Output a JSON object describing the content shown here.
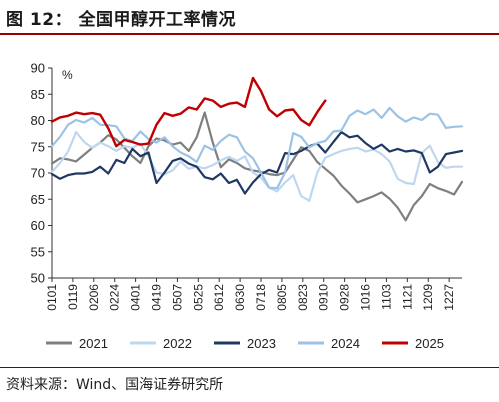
{
  "title": "图 12：  全国甲醇开工率情况",
  "source": "资料来源：Wind、国海证券研究所",
  "chart_data": {
    "type": "line",
    "unit_label": "%",
    "ylim": [
      50,
      90
    ],
    "yticks": [
      50,
      55,
      60,
      65,
      70,
      75,
      80,
      85,
      90
    ],
    "xlim": [
      1,
      52
    ],
    "xtick_labels": [
      "0101",
      "0119",
      "0206",
      "0224",
      "0401",
      "0419",
      "0507",
      "0525",
      "0612",
      "0630",
      "0718",
      "0805",
      "0823",
      "0910",
      "0928",
      "1016",
      "1103",
      "1121",
      "1209",
      "1227"
    ],
    "xtick_positions": [
      1,
      3.6,
      6.2,
      8.8,
      11.4,
      14,
      16.6,
      19.2,
      21.8,
      24.4,
      27,
      29.6,
      32.2,
      34.8,
      37.4,
      40,
      42.6,
      45.2,
      47.8,
      50.4
    ],
    "grid": false,
    "legend_position": "bottom",
    "series": [
      {
        "name": "2021",
        "color": "#7f7f7f",
        "x": [
          1,
          2,
          3,
          4,
          5,
          6,
          7,
          8,
          9,
          10,
          11,
          12,
          13,
          14,
          15,
          16,
          17,
          18,
          19,
          20,
          21,
          22,
          23,
          24,
          25,
          26,
          27,
          28,
          29,
          30,
          31,
          32,
          33,
          34,
          35,
          36,
          37,
          38,
          39,
          40,
          41,
          42,
          43,
          44,
          45,
          46,
          47,
          48,
          49,
          50,
          51,
          52
        ],
        "values": [
          71.8,
          72.8,
          72.6,
          72.2,
          73.5,
          74.8,
          75.8,
          77.2,
          76.4,
          74.8,
          73.2,
          71.9,
          75.1,
          76.6,
          76.2,
          75.4,
          75.8,
          74.2,
          76.8,
          81.5,
          75.8,
          71.1,
          72.6,
          71.9,
          70.9,
          70.5,
          70.2,
          69.8,
          69.6,
          70.1,
          72.5,
          74.9,
          74.2,
          72.1,
          70.8,
          69.5,
          67.6,
          66.1,
          64.4,
          65.0,
          65.6,
          66.3,
          65.1,
          63.4,
          61.0,
          63.9,
          65.6,
          67.9,
          67.1,
          66.6,
          65.9,
          68.3
        ]
      },
      {
        "name": "2022",
        "color": "#bfd7ee",
        "x": [
          1,
          2,
          3,
          4,
          5,
          6,
          7,
          8,
          9,
          10,
          11,
          12,
          13,
          14,
          15,
          16,
          17,
          18,
          19,
          20,
          21,
          22,
          23,
          24,
          25,
          26,
          27,
          28,
          29,
          30,
          31,
          32,
          33,
          34,
          35,
          36,
          37,
          38,
          39,
          40,
          41,
          42,
          43,
          44,
          45,
          46,
          47,
          48,
          49,
          50,
          51,
          52
        ],
        "values": [
          70.2,
          71.9,
          74.1,
          77.8,
          75.9,
          74.8,
          75.8,
          75.1,
          74.2,
          75.1,
          74.8,
          75.6,
          73.2,
          70.1,
          69.8,
          70.5,
          72.2,
          70.8,
          71.2,
          70.9,
          71.5,
          72.4,
          73.1,
          72.3,
          73.2,
          70.1,
          69.1,
          67.2,
          66.5,
          68.2,
          69.6,
          65.6,
          64.7,
          70.1,
          72.9,
          73.6,
          74.2,
          74.6,
          74.8,
          74.1,
          74.5,
          73.6,
          72.2,
          68.9,
          68.1,
          67.9,
          73.8,
          75.2,
          72.1,
          71.0,
          71.2,
          71.2
        ]
      },
      {
        "name": "2023",
        "color": "#1f3864",
        "x": [
          1,
          2,
          3,
          4,
          5,
          6,
          7,
          8,
          9,
          10,
          11,
          12,
          13,
          14,
          15,
          16,
          17,
          18,
          19,
          20,
          21,
          22,
          23,
          24,
          25,
          26,
          27,
          28,
          29,
          30,
          31,
          32,
          33,
          34,
          35,
          36,
          37,
          38,
          39,
          40,
          41,
          42,
          43,
          44,
          45,
          46,
          47,
          48,
          49,
          50,
          51,
          52
        ],
        "values": [
          69.8,
          68.9,
          69.6,
          69.9,
          69.9,
          70.2,
          71.2,
          69.9,
          72.5,
          71.9,
          74.6,
          73.2,
          73.9,
          68.1,
          70.1,
          72.3,
          72.8,
          71.8,
          71.2,
          69.2,
          68.8,
          69.9,
          68.1,
          68.7,
          66.1,
          68.2,
          69.8,
          70.6,
          70.1,
          73.8,
          73.6,
          74.2,
          75.1,
          75.6,
          73.9,
          75.9,
          77.8,
          76.8,
          77.1,
          75.7,
          74.6,
          75.4,
          74.1,
          74.6,
          74.1,
          74.3,
          73.8,
          70.1,
          71.2,
          73.6,
          73.9,
          74.2
        ]
      },
      {
        "name": "2024",
        "color": "#9cc3e5",
        "x": [
          1,
          2,
          3,
          4,
          5,
          6,
          7,
          8,
          9,
          10,
          11,
          12,
          13,
          14,
          15,
          16,
          17,
          18,
          19,
          20,
          21,
          22,
          23,
          24,
          25,
          26,
          27,
          28,
          29,
          30,
          31,
          32,
          33,
          34,
          35,
          36,
          37,
          38,
          39,
          40,
          41,
          42,
          43,
          44,
          45,
          46,
          47,
          48,
          49,
          50,
          51,
          52
        ],
        "values": [
          75.1,
          76.9,
          79.2,
          80.1,
          79.6,
          80.5,
          79.2,
          79.1,
          78.9,
          76.6,
          76.1,
          77.9,
          76.5,
          75.8,
          76.8,
          75.1,
          73.9,
          73.2,
          72.1,
          75.2,
          74.4,
          76.1,
          77.3,
          76.8,
          74.1,
          72.8,
          70.1,
          67.2,
          67.1,
          70.1,
          77.6,
          76.9,
          74.9,
          75.7,
          76.1,
          77.9,
          78.1,
          80.9,
          81.9,
          81.2,
          82.1,
          80.5,
          82.4,
          80.8,
          79.8,
          80.6,
          80.1,
          81.3,
          81.1,
          78.6,
          78.8,
          78.9
        ]
      },
      {
        "name": "2025",
        "color": "#c00000",
        "x": [
          1,
          2,
          3,
          4,
          5,
          6,
          7,
          8,
          9,
          10,
          11,
          12,
          13,
          14,
          15,
          16,
          17,
          18,
          19,
          20,
          21,
          22,
          23,
          24,
          25,
          26,
          27,
          28,
          29,
          30,
          31,
          32,
          33,
          34,
          35
        ],
        "values": [
          79.8,
          80.6,
          80.9,
          81.5,
          81.2,
          81.4,
          81.1,
          78.5,
          75.1,
          76.3,
          75.9,
          75.4,
          75.6,
          79.2,
          81.4,
          80.9,
          81.3,
          82.5,
          82.1,
          84.2,
          83.8,
          82.6,
          83.2,
          83.4,
          82.6,
          88.1,
          85.6,
          82.1,
          80.8,
          81.9,
          82.1,
          80.1,
          79.1,
          81.6,
          83.8
        ]
      }
    ]
  }
}
